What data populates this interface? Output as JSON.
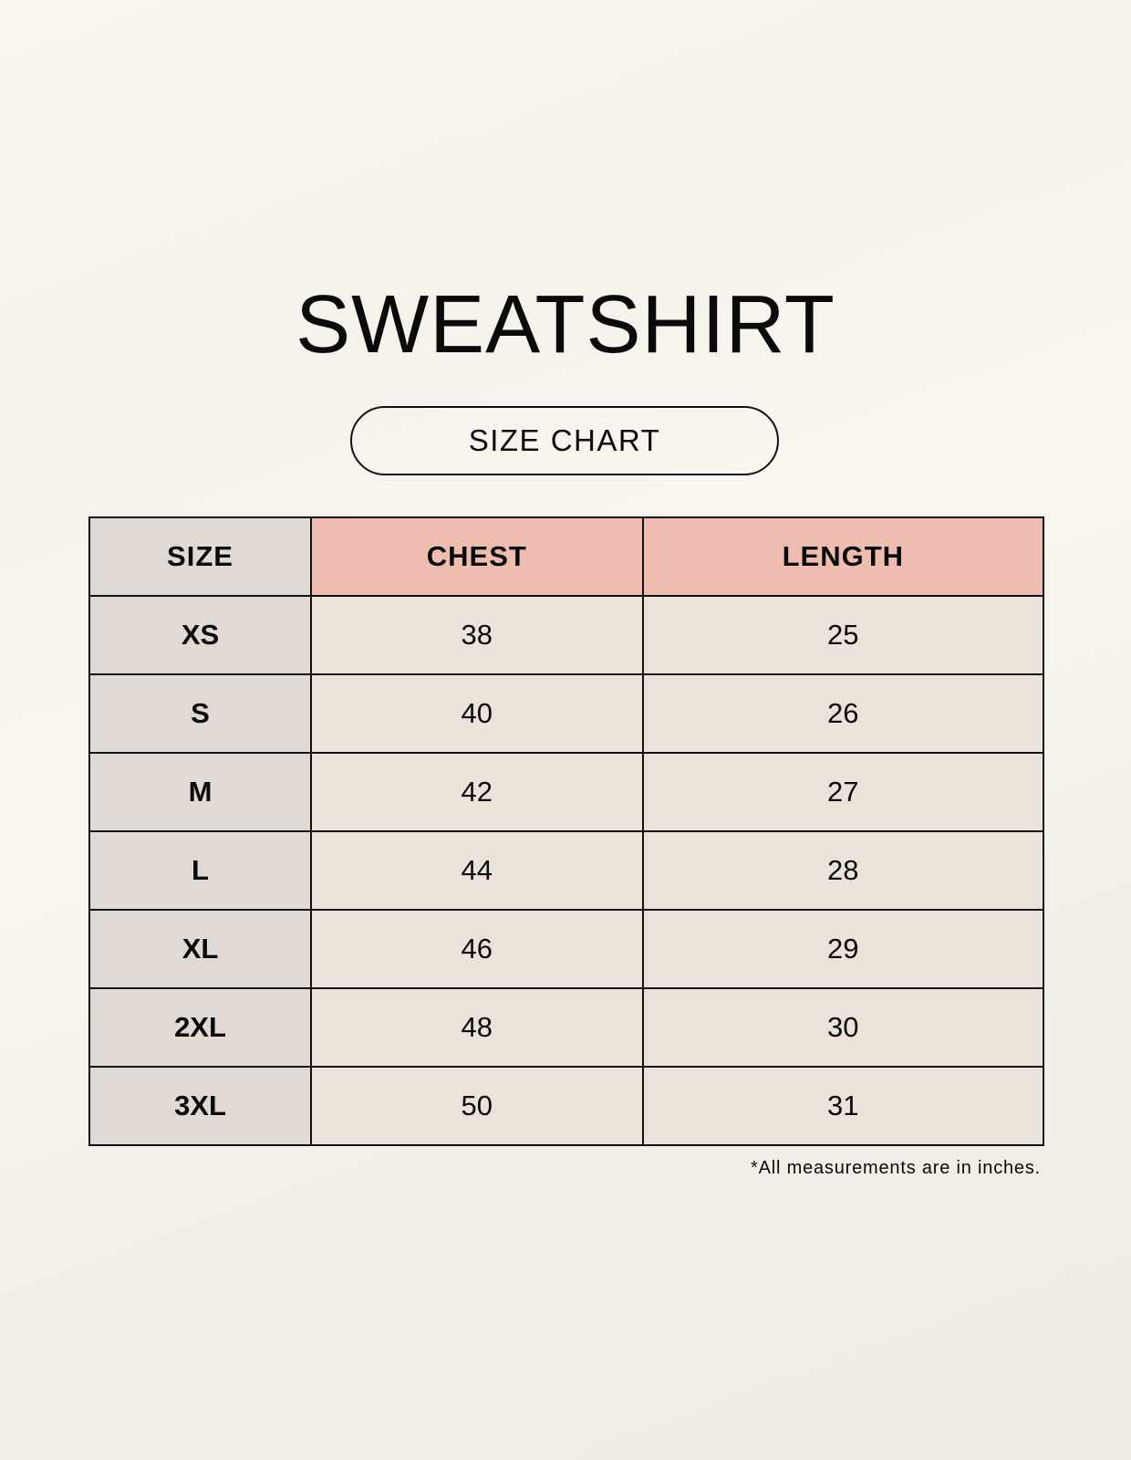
{
  "title": "SWEATSHIRT",
  "subtitle": "SIZE CHART",
  "colors": {
    "size_column": "#e1d9d4",
    "header_accent": "#eebdb0",
    "value_cells": "#ebe3d9"
  },
  "table": {
    "headers": [
      "SIZE",
      "CHEST",
      "LENGTH"
    ],
    "rows": [
      [
        "XS",
        "38",
        "25"
      ],
      [
        "S",
        "40",
        "26"
      ],
      [
        "M",
        "42",
        "27"
      ],
      [
        "L",
        "44",
        "28"
      ],
      [
        "XL",
        "46",
        "29"
      ],
      [
        "2XL",
        "48",
        "30"
      ],
      [
        "3XL",
        "50",
        "31"
      ]
    ]
  },
  "footnote": "*All measurements are in inches."
}
